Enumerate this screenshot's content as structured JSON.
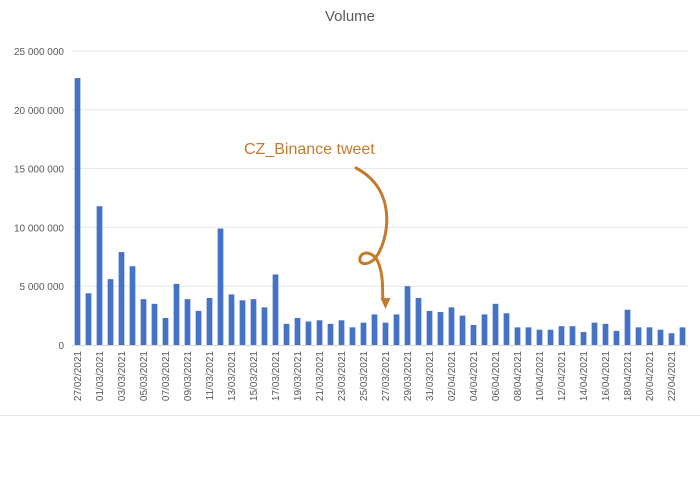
{
  "chart_data": {
    "type": "bar",
    "title": "Volume",
    "xlabel": "",
    "ylabel": "",
    "ylim": [
      0,
      25000000
    ],
    "yticks": [
      "0",
      "5 000 000",
      "10 000 000",
      "15 000 000",
      "20 000 000",
      "25 000 000"
    ],
    "ytick_values": [
      0,
      5000000,
      10000000,
      15000000,
      20000000,
      25000000
    ],
    "grid": "horizontal",
    "legend": "none",
    "bar_color": "#4472c4",
    "categories": [
      "27/02/2021",
      "28/02/2021",
      "01/03/2021",
      "02/03/2021",
      "03/03/2021",
      "04/03/2021",
      "05/03/2021",
      "06/03/2021",
      "07/03/2021",
      "08/03/2021",
      "09/03/2021",
      "10/03/2021",
      "11/03/2021",
      "12/03/2021",
      "13/03/2021",
      "14/03/2021",
      "15/03/2021",
      "16/03/2021",
      "17/03/2021",
      "18/03/2021",
      "19/03/2021",
      "20/03/2021",
      "21/03/2021",
      "22/03/2021",
      "23/03/2021",
      "24/03/2021",
      "25/03/2021",
      "26/03/2021",
      "27/03/2021",
      "28/03/2021",
      "29/03/2021",
      "30/03/2021",
      "31/03/2021",
      "01/04/2021",
      "02/04/2021",
      "03/04/2021",
      "04/04/2021",
      "05/04/2021",
      "06/04/2021",
      "07/04/2021",
      "08/04/2021",
      "09/04/2021",
      "10/04/2021",
      "11/04/2021",
      "12/04/2021",
      "13/04/2021",
      "14/04/2021",
      "15/04/2021",
      "16/04/2021",
      "17/04/2021",
      "18/04/2021",
      "19/04/2021",
      "20/04/2021",
      "21/04/2021",
      "22/04/2021",
      "23/04/2021"
    ],
    "xtick_labels": [
      "27/02/2021",
      "01/03/2021",
      "03/03/2021",
      "05/03/2021",
      "07/03/2021",
      "09/03/2021",
      "11/03/2021",
      "13/03/2021",
      "15/03/2021",
      "17/03/2021",
      "19/03/2021",
      "21/03/2021",
      "23/03/2021",
      "25/03/2021",
      "27/03/2021",
      "29/03/2021",
      "31/03/2021",
      "02/04/2021",
      "04/04/2021",
      "06/04/2021",
      "08/04/2021",
      "10/04/2021",
      "12/04/2021",
      "14/04/2021",
      "16/04/2021",
      "18/04/2021",
      "20/04/2021",
      "22/04/2021"
    ],
    "values": [
      22700000,
      4400000,
      11800000,
      5600000,
      7900000,
      6700000,
      3900000,
      3500000,
      2300000,
      5200000,
      3900000,
      2900000,
      4000000,
      9900000,
      4300000,
      3800000,
      3900000,
      3200000,
      6000000,
      1800000,
      2300000,
      2000000,
      2100000,
      1800000,
      2100000,
      1500000,
      1900000,
      2600000,
      1900000,
      2600000,
      5000000,
      4000000,
      2900000,
      2800000,
      3200000,
      2500000,
      1700000,
      2600000,
      3500000,
      2700000,
      1500000,
      1500000,
      1300000,
      1300000,
      1600000,
      1600000,
      1100000,
      1900000,
      1800000,
      1200000,
      3000000,
      1500000,
      1500000,
      1300000,
      1000000,
      1500000
    ],
    "annotation": {
      "text": "CZ_Binance tweet",
      "points_to": "27/03/2021",
      "color": "#c47a2c"
    }
  }
}
